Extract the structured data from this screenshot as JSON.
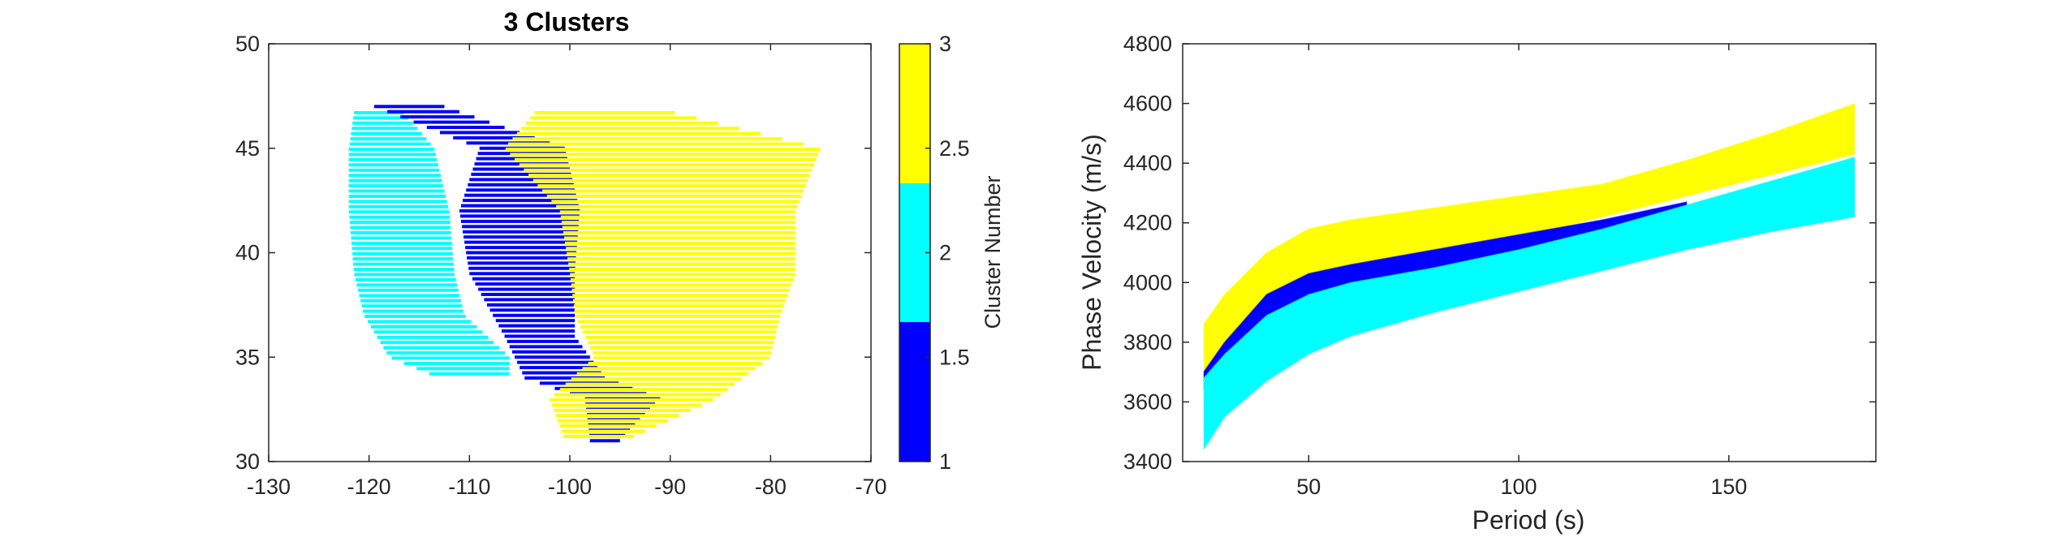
{
  "chart_data": [
    {
      "type": "map-scatter",
      "title": "3 Clusters",
      "xlim": [
        -130,
        -70
      ],
      "ylim": [
        30,
        50
      ],
      "xticks": [
        "-130",
        "-120",
        "-110",
        "-100",
        "-90",
        "-80",
        "-70"
      ],
      "yticks": [
        "30",
        "35",
        "40",
        "45",
        "50"
      ],
      "colorbar": {
        "label": "Cluster Number",
        "ticks": [
          "1",
          "1.5",
          "2",
          "2.5",
          "3"
        ],
        "range": [
          1,
          3
        ],
        "colors": [
          "#0000ff",
          "#00ffff",
          "#ffff00"
        ]
      },
      "regions": [
        {
          "cluster": 2,
          "lat_rows": [
            [
              46.7,
              [
                -121.5,
                -116.5
              ]
            ],
            [
              45.0,
              [
                -122.0,
                -113.5
              ]
            ],
            [
              42.0,
              [
                -122.0,
                -112.0
              ]
            ],
            [
              39.0,
              [
                -121.5,
                -111.5
              ]
            ],
            [
              37.0,
              [
                -120.5,
                -110.5
              ]
            ],
            [
              35.0,
              [
                -118.0,
                -106.0
              ]
            ],
            [
              34.0,
              [
                -113.0,
                -106.0
              ]
            ]
          ]
        },
        {
          "cluster": 1,
          "lat_rows": [
            [
              47.0,
              [
                -119.5,
                -112.5
              ]
            ],
            [
              45.0,
              [
                -109.0,
                -100.5
              ]
            ],
            [
              42.0,
              [
                -111.0,
                -99.0
              ]
            ],
            [
              39.0,
              [
                -110.0,
                -99.5
              ]
            ],
            [
              36.0,
              [
                -106.5,
                -99.5
              ]
            ],
            [
              34.0,
              [
                -104.5,
                -96.5
              ]
            ],
            [
              33.0,
              [
                -98.5,
                -91.0
              ]
            ],
            [
              31.0,
              [
                -98.0,
                -95.0
              ]
            ]
          ]
        },
        {
          "cluster": 3,
          "lat_rows": [
            [
              46.7,
              [
                -103.5,
                -89.5
              ]
            ],
            [
              45.0,
              [
                -106.5,
                -75.0
              ]
            ],
            [
              42.0,
              [
                -101.0,
                -77.5
              ]
            ],
            [
              39.0,
              [
                -100.0,
                -77.5
              ]
            ],
            [
              37.0,
              [
                -99.5,
                -79.0
              ]
            ],
            [
              35.0,
              [
                -97.5,
                -80.0
              ]
            ],
            [
              33.0,
              [
                -102.0,
                -85.5
              ]
            ],
            [
              31.0,
              [
                -100.5,
                -94.5
              ]
            ]
          ]
        }
      ]
    },
    {
      "type": "line",
      "xlabel": "Period (s)",
      "ylabel": "Phase Velocity (m/s)",
      "xlim": [
        20,
        185
      ],
      "ylim": [
        3400,
        4800
      ],
      "xticks": [
        "50",
        "100",
        "150"
      ],
      "yticks": [
        "3400",
        "3600",
        "3800",
        "4000",
        "4200",
        "4400",
        "4600",
        "4800"
      ],
      "x": [
        25,
        30,
        40,
        50,
        60,
        80,
        100,
        120,
        140,
        160,
        180
      ],
      "bands": [
        {
          "cluster": 3,
          "color": "#ffff00",
          "lower": [
            3600,
            3700,
            3900,
            3980,
            4030,
            4090,
            4150,
            4220,
            4290,
            4360,
            4430
          ],
          "upper": [
            3860,
            3960,
            4100,
            4180,
            4210,
            4250,
            4290,
            4330,
            4410,
            4500,
            4600
          ]
        },
        {
          "cluster": 1,
          "color": "#0000ff",
          "lower": [
            3640,
            3730,
            3870,
            3950,
            3990,
            4050,
            4110,
            4180,
            4260,
            null,
            null
          ],
          "upper": [
            3700,
            3800,
            3960,
            4030,
            4060,
            4110,
            4160,
            4210,
            4270,
            null,
            null
          ]
        },
        {
          "cluster": 2,
          "color": "#00ffff",
          "lower": [
            3440,
            3550,
            3670,
            3760,
            3820,
            3900,
            3970,
            4040,
            4110,
            4170,
            4220
          ],
          "upper": [
            3680,
            3760,
            3890,
            3960,
            4000,
            4050,
            4110,
            4180,
            4260,
            4340,
            4420
          ]
        }
      ]
    }
  ]
}
